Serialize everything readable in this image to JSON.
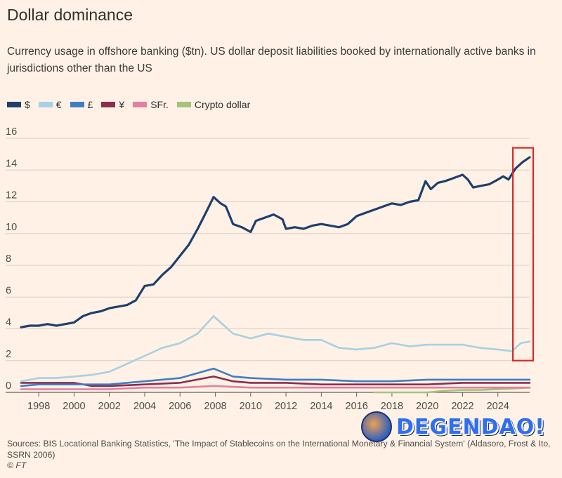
{
  "header": {
    "title": "Dollar dominance",
    "subtitle": "Currency usage in offshore banking ($tn). US dollar deposit liabilities booked by internationally active banks in jurisdictions other than the US"
  },
  "legend": [
    {
      "label": "$",
      "color": "#1f3f6e"
    },
    {
      "label": "€",
      "color": "#a8d0e3"
    },
    {
      "label": "£",
      "color": "#3f7fc0"
    },
    {
      "label": "¥",
      "color": "#8a2e4e"
    },
    {
      "label": "SFr.",
      "color": "#e37fa3"
    },
    {
      "label": "Crypto dollar",
      "color": "#a8c27a"
    }
  ],
  "footer": {
    "source": "Sources: BIS Locational Banking Statistics, 'The Impact of Stablecoins on the International Monetary & Financial System' (Aldasoro, Frost & Ito, SSRN 2006)",
    "copyright": "© FT"
  },
  "watermark": {
    "text": "DEGENDAO!"
  },
  "chart_data": {
    "type": "line",
    "ylim": [
      0,
      16
    ],
    "xlim": [
      1997,
      2025.8
    ],
    "yticks": [
      0,
      2,
      4,
      6,
      8,
      10,
      12,
      14,
      16
    ],
    "xticks": [
      1998,
      2000,
      2002,
      2004,
      2006,
      2008,
      2010,
      2012,
      2014,
      2016,
      2018,
      2020,
      2022,
      2024
    ],
    "grid": true,
    "legend_position": "top-left",
    "highlight": {
      "x0": 2024.85,
      "x1": 2026.0,
      "y0": 2.0,
      "y1": 15.4,
      "color": "#d42b2b"
    },
    "series": [
      {
        "name": "$",
        "color": "#1f3f6e",
        "points": [
          [
            1997,
            4.1
          ],
          [
            1997.5,
            4.2
          ],
          [
            1998,
            4.2
          ],
          [
            1998.5,
            4.3
          ],
          [
            1999,
            4.2
          ],
          [
            1999.5,
            4.3
          ],
          [
            2000,
            4.4
          ],
          [
            2000.5,
            4.8
          ],
          [
            2001,
            5.0
          ],
          [
            2001.5,
            5.1
          ],
          [
            2002,
            5.3
          ],
          [
            2002.5,
            5.4
          ],
          [
            2003,
            5.5
          ],
          [
            2003.5,
            5.8
          ],
          [
            2004,
            6.7
          ],
          [
            2004.5,
            6.8
          ],
          [
            2005,
            7.4
          ],
          [
            2005.5,
            7.9
          ],
          [
            2006,
            8.6
          ],
          [
            2006.5,
            9.3
          ],
          [
            2007,
            10.3
          ],
          [
            2007.5,
            11.4
          ],
          [
            2007.9,
            12.3
          ],
          [
            2008.3,
            11.9
          ],
          [
            2008.6,
            11.7
          ],
          [
            2009,
            10.6
          ],
          [
            2009.5,
            10.4
          ],
          [
            2010,
            10.1
          ],
          [
            2010.3,
            10.8
          ],
          [
            2010.8,
            11.0
          ],
          [
            2011.3,
            11.2
          ],
          [
            2011.8,
            10.9
          ],
          [
            2012,
            10.3
          ],
          [
            2012.5,
            10.4
          ],
          [
            2013,
            10.3
          ],
          [
            2013.5,
            10.5
          ],
          [
            2014,
            10.6
          ],
          [
            2014.5,
            10.5
          ],
          [
            2015,
            10.4
          ],
          [
            2015.5,
            10.6
          ],
          [
            2016,
            11.1
          ],
          [
            2016.5,
            11.3
          ],
          [
            2017,
            11.5
          ],
          [
            2017.5,
            11.7
          ],
          [
            2018,
            11.9
          ],
          [
            2018.5,
            11.8
          ],
          [
            2019,
            12.0
          ],
          [
            2019.5,
            12.1
          ],
          [
            2019.9,
            13.3
          ],
          [
            2020.2,
            12.8
          ],
          [
            2020.6,
            13.2
          ],
          [
            2021,
            13.3
          ],
          [
            2021.5,
            13.5
          ],
          [
            2022,
            13.7
          ],
          [
            2022.3,
            13.4
          ],
          [
            2022.6,
            12.9
          ],
          [
            2023,
            13.0
          ],
          [
            2023.5,
            13.1
          ],
          [
            2024,
            13.4
          ],
          [
            2024.3,
            13.6
          ],
          [
            2024.6,
            13.4
          ],
          [
            2025,
            14.1
          ],
          [
            2025.4,
            14.5
          ],
          [
            2025.8,
            14.8
          ]
        ]
      },
      {
        "name": "€",
        "color": "#a8d0e3",
        "points": [
          [
            1997,
            0.7
          ],
          [
            1998,
            0.9
          ],
          [
            1999,
            0.9
          ],
          [
            2000,
            1.0
          ],
          [
            2001,
            1.1
          ],
          [
            2002,
            1.3
          ],
          [
            2003,
            1.8
          ],
          [
            2004,
            2.3
          ],
          [
            2005,
            2.8
          ],
          [
            2006,
            3.1
          ],
          [
            2007,
            3.7
          ],
          [
            2007.9,
            4.8
          ],
          [
            2008.5,
            4.2
          ],
          [
            2009,
            3.7
          ],
          [
            2010,
            3.4
          ],
          [
            2011,
            3.7
          ],
          [
            2012,
            3.5
          ],
          [
            2013,
            3.3
          ],
          [
            2014,
            3.3
          ],
          [
            2015,
            2.8
          ],
          [
            2016,
            2.7
          ],
          [
            2017,
            2.8
          ],
          [
            2018,
            3.1
          ],
          [
            2019,
            2.9
          ],
          [
            2020,
            3.0
          ],
          [
            2021,
            3.0
          ],
          [
            2022,
            3.0
          ],
          [
            2023,
            2.8
          ],
          [
            2024,
            2.7
          ],
          [
            2024.8,
            2.6
          ],
          [
            2025.3,
            3.1
          ],
          [
            2025.8,
            3.2
          ]
        ]
      },
      {
        "name": "£",
        "color": "#3f7fc0",
        "points": [
          [
            1997,
            0.4
          ],
          [
            1998,
            0.5
          ],
          [
            2000,
            0.5
          ],
          [
            2002,
            0.5
          ],
          [
            2004,
            0.7
          ],
          [
            2006,
            0.9
          ],
          [
            2007.9,
            1.5
          ],
          [
            2009,
            1.0
          ],
          [
            2010,
            0.9
          ],
          [
            2012,
            0.8
          ],
          [
            2014,
            0.8
          ],
          [
            2016,
            0.7
          ],
          [
            2018,
            0.7
          ],
          [
            2020,
            0.8
          ],
          [
            2022,
            0.8
          ],
          [
            2024,
            0.8
          ],
          [
            2025.8,
            0.8
          ]
        ]
      },
      {
        "name": "¥",
        "color": "#8a2e4e",
        "points": [
          [
            1997,
            0.6
          ],
          [
            1998,
            0.6
          ],
          [
            2000,
            0.6
          ],
          [
            2001,
            0.4
          ],
          [
            2002,
            0.4
          ],
          [
            2004,
            0.5
          ],
          [
            2006,
            0.6
          ],
          [
            2007.9,
            1.0
          ],
          [
            2009,
            0.7
          ],
          [
            2010,
            0.6
          ],
          [
            2012,
            0.6
          ],
          [
            2014,
            0.5
          ],
          [
            2016,
            0.5
          ],
          [
            2018,
            0.5
          ],
          [
            2020,
            0.5
          ],
          [
            2022,
            0.6
          ],
          [
            2024,
            0.6
          ],
          [
            2025.8,
            0.6
          ]
        ]
      },
      {
        "name": "SFr.",
        "color": "#e37fa3",
        "points": [
          [
            1997,
            0.2
          ],
          [
            2000,
            0.2
          ],
          [
            2002,
            0.2
          ],
          [
            2004,
            0.3
          ],
          [
            2006,
            0.3
          ],
          [
            2007.9,
            0.4
          ],
          [
            2010,
            0.3
          ],
          [
            2012,
            0.3
          ],
          [
            2014,
            0.3
          ],
          [
            2016,
            0.3
          ],
          [
            2018,
            0.3
          ],
          [
            2020,
            0.3
          ],
          [
            2022,
            0.3
          ],
          [
            2024,
            0.3
          ],
          [
            2025.8,
            0.3
          ]
        ]
      },
      {
        "name": "Crypto dollar",
        "color": "#a8c27a",
        "points": [
          [
            2017,
            0.0
          ],
          [
            2019,
            0.0
          ],
          [
            2020,
            0.0
          ],
          [
            2021,
            0.1
          ],
          [
            2022,
            0.15
          ],
          [
            2023,
            0.15
          ],
          [
            2024,
            0.2
          ],
          [
            2025,
            0.25
          ],
          [
            2025.8,
            0.3
          ]
        ]
      }
    ]
  }
}
